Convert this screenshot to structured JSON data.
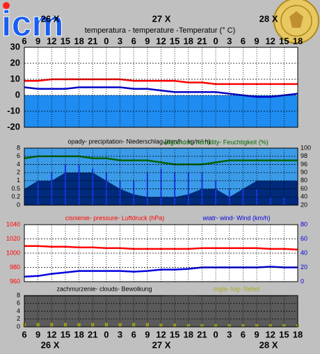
{
  "header": {
    "logo": "icm",
    "dates": [
      "26 X",
      "27 X",
      "28 X"
    ]
  },
  "chart_data": [
    {
      "type": "line",
      "title": "temperatura - temperature -Temperatur (° C)",
      "categories": [
        "6",
        "9",
        "12",
        "15",
        "18",
        "21",
        "0",
        "3",
        "6",
        "9",
        "12",
        "15",
        "18",
        "21",
        "0",
        "3",
        "6",
        "9",
        "12",
        "15",
        "18"
      ],
      "ylim": [
        -20,
        30
      ],
      "yticks": [
        -20,
        -10,
        0,
        10,
        20,
        30
      ],
      "grid": true,
      "below_zero_color": "#1e8cf0",
      "series": [
        {
          "color": "#ff0000",
          "values": [
            9,
            9,
            10,
            10,
            10,
            10,
            10,
            10,
            9,
            9,
            9,
            9,
            8,
            8,
            7,
            7,
            7,
            7,
            7,
            7,
            7
          ]
        },
        {
          "color": "#0000c8",
          "values": [
            5,
            4,
            4,
            4,
            5,
            5,
            5,
            5,
            4,
            4,
            3,
            2,
            2,
            2,
            2,
            1,
            0,
            -1,
            -1,
            0,
            1
          ]
        }
      ]
    },
    {
      "type": "bar",
      "title": "opady- precipitation- Niederschlag (mm/h : kg/m² h)",
      "yscale": "tick-spaced",
      "ylim": [
        0,
        8
      ],
      "yticks": [
        0,
        0.2,
        0.5,
        1,
        2,
        4,
        6,
        8
      ],
      "y2lim": [
        20,
        100
      ],
      "y2ticks": [
        20,
        40,
        60,
        80,
        90,
        96,
        98,
        100
      ],
      "grid": true,
      "series": [
        {
          "color": "#002a7a",
          "style": "area",
          "values": [
            0.5,
            1,
            1,
            2,
            2,
            2,
            1,
            0.5,
            0.3,
            0.2,
            0.2,
            0.2,
            0.3,
            0.5,
            0.5,
            0.2,
            0.5,
            1,
            1,
            1,
            1
          ]
        },
        {
          "color": "#1a3cff",
          "values": [
            0,
            1,
            2,
            4,
            4,
            3,
            2,
            1,
            1,
            2,
            3,
            2,
            2,
            2,
            1,
            0.5,
            0.5,
            0.5,
            0.2,
            0.2,
            0.2
          ]
        },
        {
          "name": "wilgotnosc- humidity- Feuchtigkeit (%)",
          "color": "#006400",
          "style": "line",
          "axis": "y2",
          "values": [
            97.5,
            98,
            98,
            98,
            98,
            97.5,
            97.5,
            97,
            97,
            97,
            96.5,
            96,
            96,
            96,
            96.5,
            97,
            97,
            97,
            97,
            97,
            97
          ]
        }
      ]
    },
    {
      "type": "line",
      "ylim": [
        960,
        1040
      ],
      "yticks": [
        960,
        980,
        1000,
        1020,
        1040
      ],
      "y2lim": [
        0,
        80
      ],
      "y2ticks": [
        0,
        20,
        40,
        60,
        80
      ],
      "grid": true,
      "series": [
        {
          "name": "cisnienie- pressure- Luftdruck (hPa)",
          "color": "#ff0000",
          "values": [
            1010,
            1010,
            1009,
            1009,
            1008,
            1008,
            1007,
            1007,
            1006,
            1006,
            1006,
            1006,
            1006,
            1007,
            1007,
            1007,
            1007,
            1007,
            1006,
            1006,
            1005
          ]
        },
        {
          "name": "wiatr- wind- Wind (km/h)",
          "color": "#0000e0",
          "axis": "y2",
          "values": [
            7,
            8,
            11,
            13,
            15,
            15,
            15,
            15,
            14,
            15,
            17,
            17,
            18,
            20,
            20,
            20,
            20,
            20,
            21,
            20,
            20
          ]
        }
      ]
    },
    {
      "type": "area",
      "title": "zachmurzenie- clouds- Bewolkung",
      "categories": [
        "6",
        "9",
        "12",
        "15",
        "18",
        "21",
        "0",
        "3",
        "6",
        "9",
        "12",
        "15",
        "18",
        "21",
        "0",
        "3",
        "6",
        "9",
        "12",
        "15",
        "18"
      ],
      "ylim": [
        0,
        8
      ],
      "yticks": [
        0,
        2,
        4,
        6,
        8
      ],
      "grid": true,
      "series": [
        {
          "color": "#5a5a5a",
          "values": [
            7.8,
            7.8,
            7.8,
            7.8,
            7.8,
            7.8,
            7.8,
            7.8,
            7.8,
            7.8,
            7.8,
            8,
            8,
            7.8,
            7.8,
            7.8,
            7.8,
            7.8,
            7.8,
            7.8,
            8
          ]
        },
        {
          "name": "mgla- fog- Nebel",
          "color": "#a8a820",
          "style": "bar",
          "values": [
            1,
            1,
            1,
            1,
            1,
            1,
            1,
            1,
            1,
            1,
            0.8,
            0.8,
            0.7,
            0.7,
            0.7,
            0.7,
            0.7,
            0.7,
            0.7,
            0.7,
            0.7
          ]
        }
      ]
    }
  ]
}
